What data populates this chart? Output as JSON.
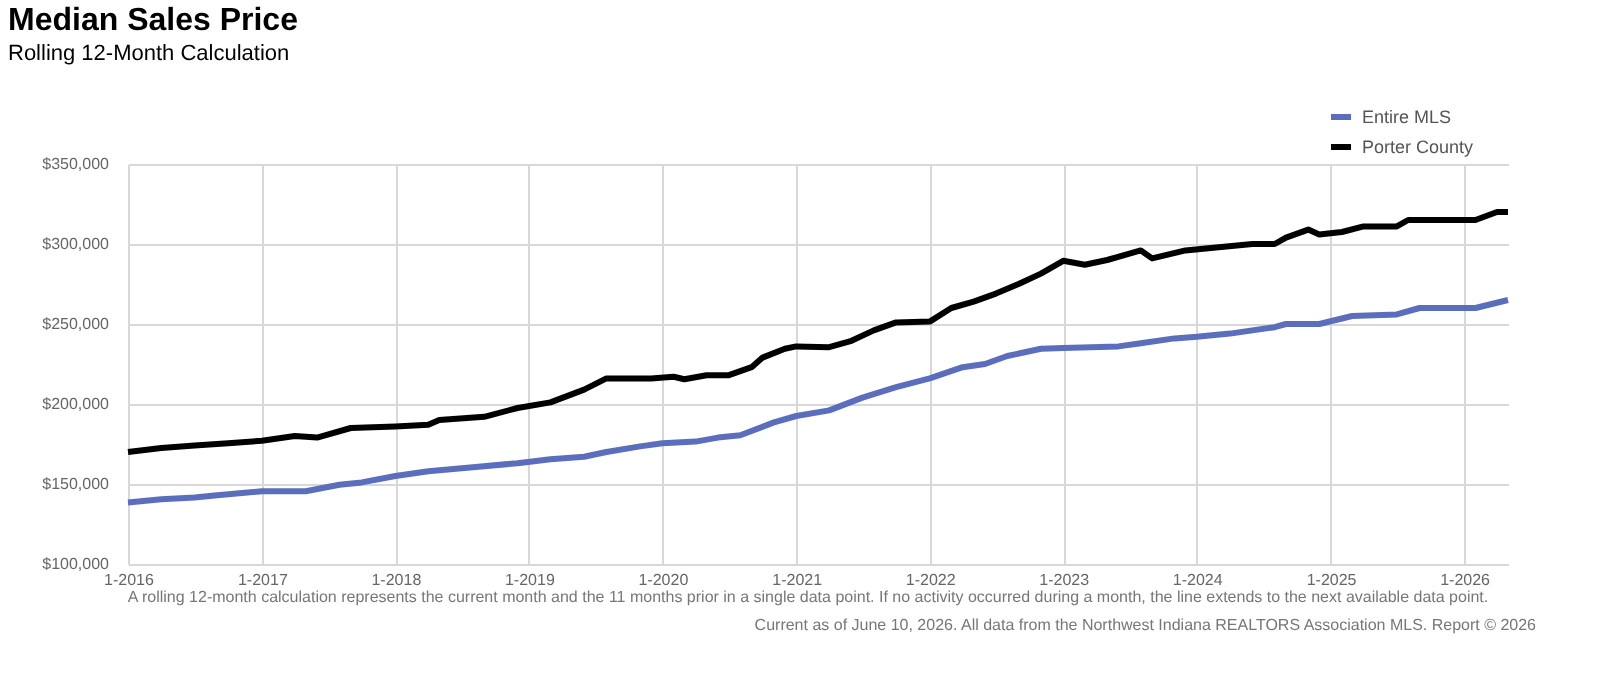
{
  "chart_data": {
    "type": "line",
    "title": "Median Sales Price",
    "subtitle": "Rolling 12-Month Calculation",
    "xlim": [
      "2016-01",
      "2026-05"
    ],
    "xticks": [
      {
        "value": "2016-01",
        "label": "1-2016"
      },
      {
        "value": "2017-01",
        "label": "1-2017"
      },
      {
        "value": "2018-01",
        "label": "1-2018"
      },
      {
        "value": "2019-01",
        "label": "1-2019"
      },
      {
        "value": "2020-01",
        "label": "1-2020"
      },
      {
        "value": "2021-01",
        "label": "1-2021"
      },
      {
        "value": "2022-01",
        "label": "1-2022"
      },
      {
        "value": "2023-01",
        "label": "1-2023"
      },
      {
        "value": "2024-01",
        "label": "1-2024"
      },
      {
        "value": "2025-01",
        "label": "1-2025"
      },
      {
        "value": "2026-01",
        "label": "1-2026"
      }
    ],
    "ylim": [
      100000,
      350000
    ],
    "yticks": [
      {
        "value": 100000,
        "label": "$100,000"
      },
      {
        "value": 150000,
        "label": "$150,000"
      },
      {
        "value": 200000,
        "label": "$200,000"
      },
      {
        "value": 250000,
        "label": "$250,000"
      },
      {
        "value": 300000,
        "label": "$300,000"
      },
      {
        "value": 350000,
        "label": "$350,000"
      }
    ],
    "grid": true,
    "legend": "top right",
    "line_style": "solid",
    "series": [
      {
        "name": "Entire MLS",
        "color": "#5b6ebd",
        "x": [
          "2016-01",
          "2016-04",
          "2016-07",
          "2016-09",
          "2017-01",
          "2017-05",
          "2017-08",
          "2017-10",
          "2018-01",
          "2018-04",
          "2018-08",
          "2018-12",
          "2019-03",
          "2019-06",
          "2019-08",
          "2019-11",
          "2020-01",
          "2020-04",
          "2020-06",
          "2020-08",
          "2020-11",
          "2021-01",
          "2021-04",
          "2021-07",
          "2021-10",
          "2022-01",
          "2022-04",
          "2022-06",
          "2022-08",
          "2022-11",
          "2023-01",
          "2023-06",
          "2023-08",
          "2023-11",
          "2024-01",
          "2024-04",
          "2024-08",
          "2024-09",
          "2024-12",
          "2025-03",
          "2025-07",
          "2025-09",
          "2026-02",
          "2026-05"
        ],
        "values": [
          138500,
          140500,
          141500,
          143000,
          145500,
          145500,
          149500,
          151000,
          155000,
          158000,
          160500,
          163000,
          165500,
          167000,
          170000,
          173500,
          175500,
          176500,
          179000,
          180500,
          188500,
          192500,
          196000,
          204000,
          210500,
          216000,
          223000,
          225000,
          230000,
          234500,
          235000,
          236000,
          238000,
          241000,
          242000,
          244000,
          248000,
          250000,
          250000,
          255000,
          256000,
          260000,
          260000,
          265000
        ]
      },
      {
        "name": "Porter County",
        "color": "#000000",
        "x": [
          "2016-01",
          "2016-04",
          "2016-07",
          "2016-10",
          "2017-01",
          "2017-04",
          "2017-06",
          "2017-09",
          "2018-01",
          "2018-04",
          "2018-05",
          "2018-09",
          "2018-12",
          "2019-03",
          "2019-06",
          "2019-08",
          "2019-12",
          "2020-02",
          "2020-03",
          "2020-05",
          "2020-07",
          "2020-09",
          "2020-10",
          "2020-12",
          "2021-01",
          "2021-04",
          "2021-06",
          "2021-08",
          "2021-10",
          "2022-01",
          "2022-03",
          "2022-05",
          "2022-07",
          "2022-09",
          "2022-11",
          "2023-01",
          "2023-03",
          "2023-05",
          "2023-07",
          "2023-08",
          "2023-09",
          "2023-12",
          "2024-03",
          "2024-06",
          "2024-08",
          "2024-09",
          "2024-11",
          "2024-12",
          "2025-02",
          "2025-04",
          "2025-07",
          "2025-08",
          "2025-12",
          "2026-02",
          "2026-04",
          "2026-05"
        ],
        "values": [
          170000,
          172500,
          174000,
          175500,
          177000,
          180000,
          179000,
          185000,
          186000,
          187000,
          190000,
          192000,
          197500,
          201000,
          209000,
          216000,
          216000,
          217000,
          215500,
          218000,
          218000,
          223000,
          229000,
          234500,
          236000,
          235500,
          239500,
          246000,
          251000,
          251500,
          260000,
          264000,
          269000,
          275000,
          281500,
          289500,
          287000,
          290000,
          294000,
          296000,
          291000,
          296000,
          298000,
          300000,
          300000,
          304000,
          309000,
          306000,
          307500,
          311000,
          311000,
          315000,
          315000,
          315000,
          320000,
          320000
        ]
      }
    ],
    "annotations": [
      "A rolling 12-month calculation represents the current month and the 11 months prior in a single data point. If no activity occurred during a month, the line extends to the next available data point.",
      "Current as of June 10, 2026. All data from the Northwest Indiana REALTORS Association MLS. Report © 2026"
    ]
  }
}
